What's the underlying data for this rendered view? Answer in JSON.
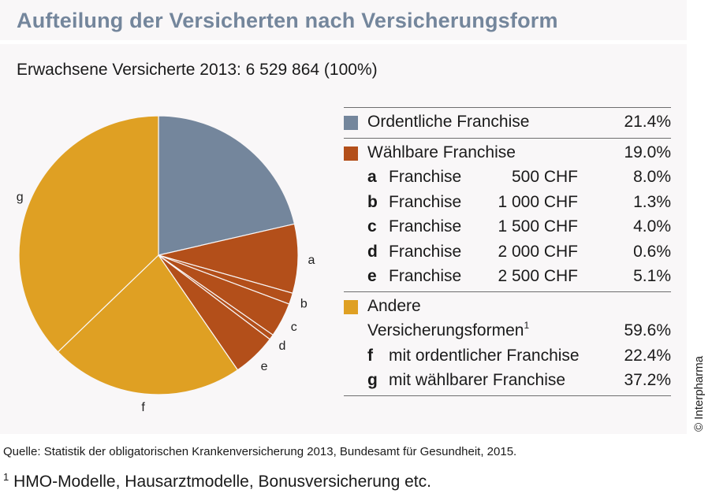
{
  "title": "Aufteilung der Versicherten nach Versicherungsform",
  "subtitle": "Erwachsene Versicherte 2013: 6 529 864 (100%)",
  "colors": {
    "ordentliche": "#74869c",
    "waehlbare": "#b34f1a",
    "andere": "#dfa023",
    "title": "#74869c",
    "panel": "#f9f7f8"
  },
  "legend": {
    "ordentliche": {
      "label": "Ordentliche Franchise",
      "pct": "21.4%"
    },
    "waehlbare": {
      "label": "Wählbare Franchise",
      "pct": "19.0%",
      "items": [
        {
          "key": "a",
          "label": "Franchise",
          "amount": "500 CHF",
          "pct": "8.0%"
        },
        {
          "key": "b",
          "label": "Franchise",
          "amount": "1 000 CHF",
          "pct": "1.3%"
        },
        {
          "key": "c",
          "label": "Franchise",
          "amount": "1 500 CHF",
          "pct": "4.0%"
        },
        {
          "key": "d",
          "label": "Franchise",
          "amount": "2 000 CHF",
          "pct": "0.6%"
        },
        {
          "key": "e",
          "label": "Franchise",
          "amount": "2 500 CHF",
          "pct": "5.1%"
        }
      ]
    },
    "andere": {
      "label_line1": "Andere",
      "label_line2": "Versicherungsformen",
      "footnote_mark": "1",
      "pct": "59.6%",
      "items": [
        {
          "key": "f",
          "label": "mit ordentlicher Franchise",
          "pct": "22.4%"
        },
        {
          "key": "g",
          "label": "mit wählbarer Franchise",
          "pct": "37.2%"
        }
      ]
    }
  },
  "chart_data": {
    "type": "pie",
    "title": "Aufteilung der Versicherten nach Versicherungsform",
    "subtitle": "Erwachsene Versicherte 2013: 6 529 864 (100%)",
    "start": "12 o'clock, clockwise",
    "slices": [
      {
        "name": "Ordentliche Franchise",
        "label": "",
        "value": 21.4,
        "group": "ordentliche"
      },
      {
        "name": "Franchise 500 CHF",
        "label": "a",
        "value": 8.0,
        "group": "waehlbare"
      },
      {
        "name": "Franchise 1 000 CHF",
        "label": "b",
        "value": 1.3,
        "group": "waehlbare"
      },
      {
        "name": "Franchise 1 500 CHF",
        "label": "c",
        "value": 4.0,
        "group": "waehlbare"
      },
      {
        "name": "Franchise 2 000 CHF",
        "label": "d",
        "value": 0.6,
        "group": "waehlbare"
      },
      {
        "name": "Franchise 2 500 CHF",
        "label": "e",
        "value": 5.1,
        "group": "waehlbare"
      },
      {
        "name": "mit ordentlicher Franchise",
        "label": "f",
        "value": 22.4,
        "group": "andere"
      },
      {
        "name": "mit wählbarer Franchise",
        "label": "g",
        "value": 37.2,
        "group": "andere"
      }
    ]
  },
  "copyright": "© Interpharma",
  "source": "Quelle: Statistik der obligatorischen Krankenversicherung 2013, Bundesamt für Gesundheit, 2015.",
  "footnote": {
    "mark": "1",
    "text": "HMO-Modelle, Hausarztmodelle, Bonusversicherung etc."
  }
}
